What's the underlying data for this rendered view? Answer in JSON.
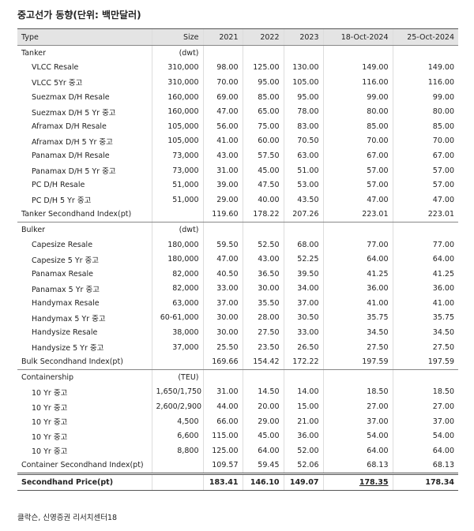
{
  "title": "중고선가 동향(단위: 백만달러)",
  "header": [
    "Type",
    "Size",
    "2021",
    "2022",
    "2023",
    "18-Oct-2024",
    "25-Oct-2024"
  ],
  "sections": [
    {
      "name": "Tanker",
      "unit": "(dwt)",
      "rows": [
        {
          "type": "VLCC Resale",
          "size": "310,000",
          "values": [
            "98.00",
            "125.00",
            "130.00",
            "149.00",
            "149.00"
          ]
        },
        {
          "type": "VLCC 5Yr 중고",
          "size": "310,000",
          "values": [
            "70.00",
            "95.00",
            "105.00",
            "116.00",
            "116.00"
          ]
        },
        {
          "type": "Suezmax D/H Resale",
          "size": "160,000",
          "values": [
            "69.00",
            "85.00",
            "95.00",
            "99.00",
            "99.00"
          ]
        },
        {
          "type": "Suezmax D/H 5 Yr 중고",
          "size": "160,000",
          "values": [
            "47.00",
            "65.00",
            "78.00",
            "80.00",
            "80.00"
          ]
        },
        {
          "type": "Aframax D/H Resale",
          "size": "105,000",
          "values": [
            "56.00",
            "75.00",
            "83.00",
            "85.00",
            "85.00"
          ]
        },
        {
          "type": "Aframax D/H 5 Yr 중고",
          "size": "105,000",
          "values": [
            "41.00",
            "60.00",
            "70.50",
            "70.00",
            "70.00"
          ]
        },
        {
          "type": "Panamax D/H Resale",
          "size": "73,000",
          "values": [
            "43.00",
            "57.50",
            "63.00",
            "67.00",
            "67.00"
          ]
        },
        {
          "type": "Panamax D/H 5 Yr 중고",
          "size": "73,000",
          "values": [
            "31.00",
            "45.00",
            "51.00",
            "57.00",
            "57.00"
          ]
        },
        {
          "type": "PC D/H Resale",
          "size": "51,000",
          "values": [
            "39.00",
            "47.50",
            "53.00",
            "57.00",
            "57.00"
          ]
        },
        {
          "type": "PC D/H 5 Yr 중고",
          "size": "51,000",
          "values": [
            "29.00",
            "40.00",
            "43.50",
            "47.00",
            "47.00"
          ]
        }
      ],
      "index": {
        "type": "Tanker Secondhand Index(pt)",
        "values": [
          "119.60",
          "178.22",
          "207.26",
          "223.01",
          "223.01"
        ]
      }
    },
    {
      "name": "Bulker",
      "unit": "(dwt)",
      "rows": [
        {
          "type": "Capesize Resale",
          "size": "180,000",
          "values": [
            "59.50",
            "52.50",
            "68.00",
            "77.00",
            "77.00"
          ]
        },
        {
          "type": "Capesize 5 Yr 중고",
          "size": "180,000",
          "values": [
            "47.00",
            "43.00",
            "52.25",
            "64.00",
            "64.00"
          ]
        },
        {
          "type": "Panamax Resale",
          "size": "82,000",
          "values": [
            "40.50",
            "36.50",
            "39.50",
            "41.25",
            "41.25"
          ]
        },
        {
          "type": "Panamax 5 Yr 중고",
          "size": "82,000",
          "values": [
            "33.00",
            "30.00",
            "34.00",
            "36.00",
            "36.00"
          ]
        },
        {
          "type": "Handymax Resale",
          "size": "63,000",
          "values": [
            "37.00",
            "35.50",
            "37.00",
            "41.00",
            "41.00"
          ]
        },
        {
          "type": "Handymax 5 Yr 중고",
          "size": "60-61,000",
          "values": [
            "30.00",
            "28.00",
            "30.50",
            "35.75",
            "35.75"
          ]
        },
        {
          "type": "Handysize Resale",
          "size": "38,000",
          "values": [
            "30.00",
            "27.50",
            "33.00",
            "34.50",
            "34.50"
          ]
        },
        {
          "type": "Handysize 5 Yr 중고",
          "size": "37,000",
          "values": [
            "25.50",
            "23.50",
            "26.50",
            "27.50",
            "27.50"
          ]
        }
      ],
      "index": {
        "type": "Bulk Secondhand Index(pt)",
        "values": [
          "169.66",
          "154.42",
          "172.22",
          "197.59",
          "197.59"
        ]
      }
    },
    {
      "name": "Containership",
      "unit": "(TEU)",
      "rows": [
        {
          "type": "10 Yr 중고",
          "size": "1,650/1,750",
          "values": [
            "31.00",
            "14.50",
            "14.00",
            "18.50",
            "18.50"
          ]
        },
        {
          "type": "10 Yr 중고",
          "size": "2,600/2,900",
          "values": [
            "44.00",
            "20.00",
            "15.00",
            "27.00",
            "27.00"
          ]
        },
        {
          "type": "10 Yr 중고",
          "size": "4,500",
          "values": [
            "66.00",
            "29.00",
            "21.00",
            "37.00",
            "37.00"
          ]
        },
        {
          "type": "10 Yr 중고",
          "size": "6,600",
          "values": [
            "115.00",
            "45.00",
            "36.00",
            "54.00",
            "54.00"
          ]
        },
        {
          "type": "10 Yr 중고",
          "size": "8,800",
          "values": [
            "125.00",
            "64.00",
            "52.00",
            "64.00",
            "64.00"
          ]
        }
      ],
      "index": {
        "type": "Container Secondhand Index(pt)",
        "values": [
          "109.57",
          "59.45",
          "52.06",
          "68.13",
          "68.13"
        ]
      }
    }
  ],
  "total": {
    "type": "Secondhand Price(pt)",
    "values": [
      "183.41",
      "146.10",
      "149.07",
      "178.35",
      "178.34"
    ]
  },
  "source": "클락슨, 신영증권 리서치센터18"
}
